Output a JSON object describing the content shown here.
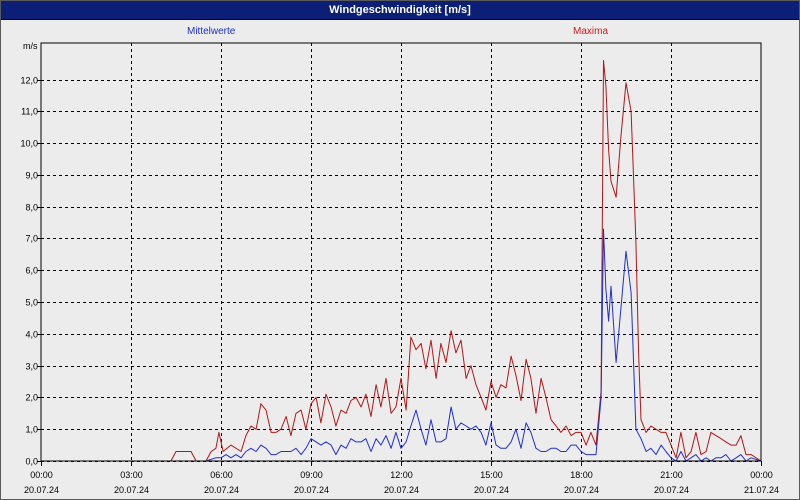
{
  "window": {
    "title": "Windgeschwindigkeit [m/s]"
  },
  "legend": {
    "mean_label": "Mittelwerte",
    "max_label": "Maxima"
  },
  "axis": {
    "y_unit": "m/s"
  },
  "colors": {
    "mean": "#1f2fd0",
    "max": "#b51515",
    "title_bar": "#0c1f76",
    "background": "#ececec",
    "grid": "#000000"
  },
  "chart_data": {
    "type": "line",
    "title": "Windgeschwindigkeit [m/s]",
    "ylabel": "m/s",
    "xlabel": "",
    "xlim": [
      0,
      24
    ],
    "ylim": [
      0,
      13.15
    ],
    "grid": true,
    "legend_placement": "top",
    "y_ticks": [
      {
        "value": 0,
        "label": "0,0"
      },
      {
        "value": 1,
        "label": "1,0"
      },
      {
        "value": 2,
        "label": "2,0"
      },
      {
        "value": 3,
        "label": "3,0"
      },
      {
        "value": 4,
        "label": "4,0"
      },
      {
        "value": 5,
        "label": "5,0"
      },
      {
        "value": 6,
        "label": "6,0"
      },
      {
        "value": 7,
        "label": "7,0"
      },
      {
        "value": 8,
        "label": "8,0"
      },
      {
        "value": 9,
        "label": "9,0"
      },
      {
        "value": 10,
        "label": "10,0"
      },
      {
        "value": 11,
        "label": "11,0"
      },
      {
        "value": 12,
        "label": "12,0"
      }
    ],
    "x_ticks": [
      {
        "value": 0,
        "time": "00:00",
        "date": "20.07.24"
      },
      {
        "value": 3,
        "time": "03:00",
        "date": "20.07.24"
      },
      {
        "value": 6,
        "time": "06:00",
        "date": "20.07.24"
      },
      {
        "value": 9,
        "time": "09:00",
        "date": "20.07.24"
      },
      {
        "value": 12,
        "time": "12:00",
        "date": "20.07.24"
      },
      {
        "value": 15,
        "time": "15:00",
        "date": "20.07.24"
      },
      {
        "value": 18,
        "time": "18:00",
        "date": "20.07.24"
      },
      {
        "value": 21,
        "time": "21:00",
        "date": "20.07.24"
      },
      {
        "value": 24,
        "time": "00:00",
        "date": "21.07.24"
      }
    ],
    "series": [
      {
        "name": "Maxima",
        "color": "#b51515",
        "points": [
          [
            0,
            0.0
          ],
          [
            4.33,
            0.0
          ],
          [
            4.5,
            0.3
          ],
          [
            5.0,
            0.3
          ],
          [
            5.17,
            0.0
          ],
          [
            5.5,
            0.0
          ],
          [
            5.67,
            0.3
          ],
          [
            5.83,
            0.4
          ],
          [
            5.93,
            0.9
          ],
          [
            6.07,
            0.3
          ],
          [
            6.33,
            0.5
          ],
          [
            6.67,
            0.3
          ],
          [
            6.83,
            0.8
          ],
          [
            7.0,
            1.1
          ],
          [
            7.17,
            1.0
          ],
          [
            7.33,
            1.8
          ],
          [
            7.5,
            1.6
          ],
          [
            7.67,
            0.9
          ],
          [
            7.83,
            0.9
          ],
          [
            8.0,
            1.0
          ],
          [
            8.17,
            1.4
          ],
          [
            8.33,
            0.8
          ],
          [
            8.5,
            1.5
          ],
          [
            8.67,
            1.6
          ],
          [
            8.83,
            1.0
          ],
          [
            9.0,
            1.8
          ],
          [
            9.17,
            2.0
          ],
          [
            9.33,
            1.2
          ],
          [
            9.5,
            2.1
          ],
          [
            9.67,
            1.7
          ],
          [
            9.83,
            1.1
          ],
          [
            10.0,
            1.6
          ],
          [
            10.17,
            1.5
          ],
          [
            10.33,
            1.9
          ],
          [
            10.5,
            2.0
          ],
          [
            10.67,
            1.7
          ],
          [
            10.83,
            2.1
          ],
          [
            11.0,
            1.4
          ],
          [
            11.17,
            2.4
          ],
          [
            11.33,
            1.7
          ],
          [
            11.5,
            2.6
          ],
          [
            11.67,
            1.5
          ],
          [
            11.83,
            1.7
          ],
          [
            12.0,
            2.6
          ],
          [
            12.17,
            1.6
          ],
          [
            12.33,
            3.9
          ],
          [
            12.5,
            3.5
          ],
          [
            12.67,
            3.7
          ],
          [
            12.83,
            2.9
          ],
          [
            13.0,
            3.8
          ],
          [
            13.17,
            2.6
          ],
          [
            13.33,
            3.7
          ],
          [
            13.5,
            3.1
          ],
          [
            13.67,
            4.1
          ],
          [
            13.83,
            3.4
          ],
          [
            14.0,
            3.8
          ],
          [
            14.17,
            2.6
          ],
          [
            14.33,
            3.0
          ],
          [
            14.5,
            2.4
          ],
          [
            14.67,
            2.0
          ],
          [
            14.83,
            1.6
          ],
          [
            15.0,
            2.5
          ],
          [
            15.17,
            2.0
          ],
          [
            15.33,
            2.4
          ],
          [
            15.5,
            2.3
          ],
          [
            15.67,
            3.3
          ],
          [
            15.83,
            2.7
          ],
          [
            16.0,
            1.9
          ],
          [
            16.17,
            3.2
          ],
          [
            16.33,
            2.6
          ],
          [
            16.5,
            1.5
          ],
          [
            16.67,
            2.6
          ],
          [
            16.83,
            2.0
          ],
          [
            17.0,
            1.3
          ],
          [
            17.17,
            1.1
          ],
          [
            17.33,
            0.9
          ],
          [
            17.5,
            1.1
          ],
          [
            17.67,
            0.8
          ],
          [
            17.83,
            0.9
          ],
          [
            18.0,
            0.9
          ],
          [
            18.17,
            0.5
          ],
          [
            18.33,
            0.9
          ],
          [
            18.5,
            0.5
          ],
          [
            18.67,
            2.2
          ],
          [
            18.75,
            12.6
          ],
          [
            18.83,
            11.8
          ],
          [
            18.92,
            9.8
          ],
          [
            19.0,
            8.8
          ],
          [
            19.17,
            8.3
          ],
          [
            19.33,
            10.2
          ],
          [
            19.5,
            11.9
          ],
          [
            19.67,
            11.0
          ],
          [
            19.83,
            6.9
          ],
          [
            19.92,
            3.4
          ],
          [
            20.0,
            1.3
          ],
          [
            20.17,
            0.9
          ],
          [
            20.33,
            1.1
          ],
          [
            20.5,
            1.0
          ],
          [
            20.67,
            0.9
          ],
          [
            20.83,
            0.9
          ],
          [
            21.0,
            0.5
          ],
          [
            21.17,
            0.1
          ],
          [
            21.33,
            0.9
          ],
          [
            21.5,
            0.1
          ],
          [
            21.67,
            0.3
          ],
          [
            21.83,
            0.9
          ],
          [
            22.0,
            0.2
          ],
          [
            22.17,
            0.3
          ],
          [
            22.33,
            0.9
          ],
          [
            22.5,
            0.8
          ],
          [
            22.67,
            0.7
          ],
          [
            22.83,
            0.6
          ],
          [
            23.0,
            0.5
          ],
          [
            23.17,
            0.5
          ],
          [
            23.33,
            0.8
          ],
          [
            23.5,
            0.2
          ],
          [
            23.67,
            0.2
          ],
          [
            24.0,
            0.0
          ]
        ]
      },
      {
        "name": "Mittelwerte",
        "color": "#1f2fd0",
        "points": [
          [
            0,
            0.0
          ],
          [
            5.5,
            0.0
          ],
          [
            5.83,
            0.1
          ],
          [
            6.0,
            0.1
          ],
          [
            6.17,
            0.2
          ],
          [
            6.33,
            0.1
          ],
          [
            6.5,
            0.2
          ],
          [
            6.67,
            0.1
          ],
          [
            6.83,
            0.3
          ],
          [
            7.0,
            0.4
          ],
          [
            7.17,
            0.3
          ],
          [
            7.33,
            0.5
          ],
          [
            7.5,
            0.4
          ],
          [
            7.67,
            0.2
          ],
          [
            7.83,
            0.2
          ],
          [
            8.0,
            0.3
          ],
          [
            8.17,
            0.3
          ],
          [
            8.33,
            0.3
          ],
          [
            8.5,
            0.4
          ],
          [
            8.67,
            0.2
          ],
          [
            8.83,
            0.4
          ],
          [
            9.0,
            0.7
          ],
          [
            9.17,
            0.6
          ],
          [
            9.33,
            0.5
          ],
          [
            9.5,
            0.6
          ],
          [
            9.67,
            0.5
          ],
          [
            9.83,
            0.2
          ],
          [
            10.0,
            0.5
          ],
          [
            10.17,
            0.4
          ],
          [
            10.33,
            0.7
          ],
          [
            10.5,
            0.6
          ],
          [
            10.67,
            0.6
          ],
          [
            10.83,
            0.7
          ],
          [
            11.0,
            0.3
          ],
          [
            11.17,
            0.7
          ],
          [
            11.33,
            0.5
          ],
          [
            11.5,
            0.8
          ],
          [
            11.67,
            0.4
          ],
          [
            11.83,
            0.9
          ],
          [
            12.0,
            0.4
          ],
          [
            12.17,
            0.6
          ],
          [
            12.33,
            1.1
          ],
          [
            12.5,
            1.6
          ],
          [
            12.67,
            1.0
          ],
          [
            12.83,
            0.5
          ],
          [
            13.0,
            1.3
          ],
          [
            13.17,
            0.6
          ],
          [
            13.33,
            0.6
          ],
          [
            13.5,
            0.7
          ],
          [
            13.67,
            1.7
          ],
          [
            13.83,
            1.0
          ],
          [
            14.0,
            1.2
          ],
          [
            14.17,
            1.1
          ],
          [
            14.33,
            1.0
          ],
          [
            14.5,
            1.1
          ],
          [
            14.67,
            0.9
          ],
          [
            14.83,
            0.5
          ],
          [
            15.0,
            1.2
          ],
          [
            15.17,
            0.5
          ],
          [
            15.33,
            0.4
          ],
          [
            15.5,
            0.4
          ],
          [
            15.67,
            0.6
          ],
          [
            15.83,
            1.0
          ],
          [
            16.0,
            0.4
          ],
          [
            16.17,
            1.2
          ],
          [
            16.33,
            0.9
          ],
          [
            16.5,
            0.4
          ],
          [
            16.67,
            0.3
          ],
          [
            16.83,
            0.3
          ],
          [
            17.0,
            0.4
          ],
          [
            17.17,
            0.4
          ],
          [
            17.33,
            0.3
          ],
          [
            17.5,
            0.3
          ],
          [
            17.67,
            0.5
          ],
          [
            17.83,
            0.5
          ],
          [
            18.0,
            0.3
          ],
          [
            18.17,
            0.2
          ],
          [
            18.33,
            0.2
          ],
          [
            18.5,
            0.2
          ],
          [
            18.67,
            2.0
          ],
          [
            18.75,
            7.3
          ],
          [
            18.83,
            5.4
          ],
          [
            18.92,
            4.4
          ],
          [
            19.0,
            5.5
          ],
          [
            19.17,
            3.1
          ],
          [
            19.33,
            4.8
          ],
          [
            19.5,
            6.6
          ],
          [
            19.67,
            5.3
          ],
          [
            19.83,
            1.0
          ],
          [
            20.0,
            0.7
          ],
          [
            20.17,
            0.3
          ],
          [
            20.33,
            0.4
          ],
          [
            20.5,
            0.2
          ],
          [
            20.67,
            0.5
          ],
          [
            20.83,
            0.3
          ],
          [
            21.0,
            0.1
          ],
          [
            21.17,
            0.0
          ],
          [
            21.33,
            0.3
          ],
          [
            21.5,
            0.0
          ],
          [
            21.67,
            0.1
          ],
          [
            21.83,
            0.2
          ],
          [
            22.0,
            0.0
          ],
          [
            22.17,
            0.1
          ],
          [
            22.33,
            0.0
          ],
          [
            22.5,
            0.1
          ],
          [
            22.67,
            0.1
          ],
          [
            22.83,
            0.2
          ],
          [
            23.0,
            0.0
          ],
          [
            23.17,
            0.1
          ],
          [
            23.33,
            0.2
          ],
          [
            23.5,
            0.0
          ],
          [
            23.67,
            0.1
          ],
          [
            24.0,
            0.0
          ]
        ]
      }
    ]
  }
}
